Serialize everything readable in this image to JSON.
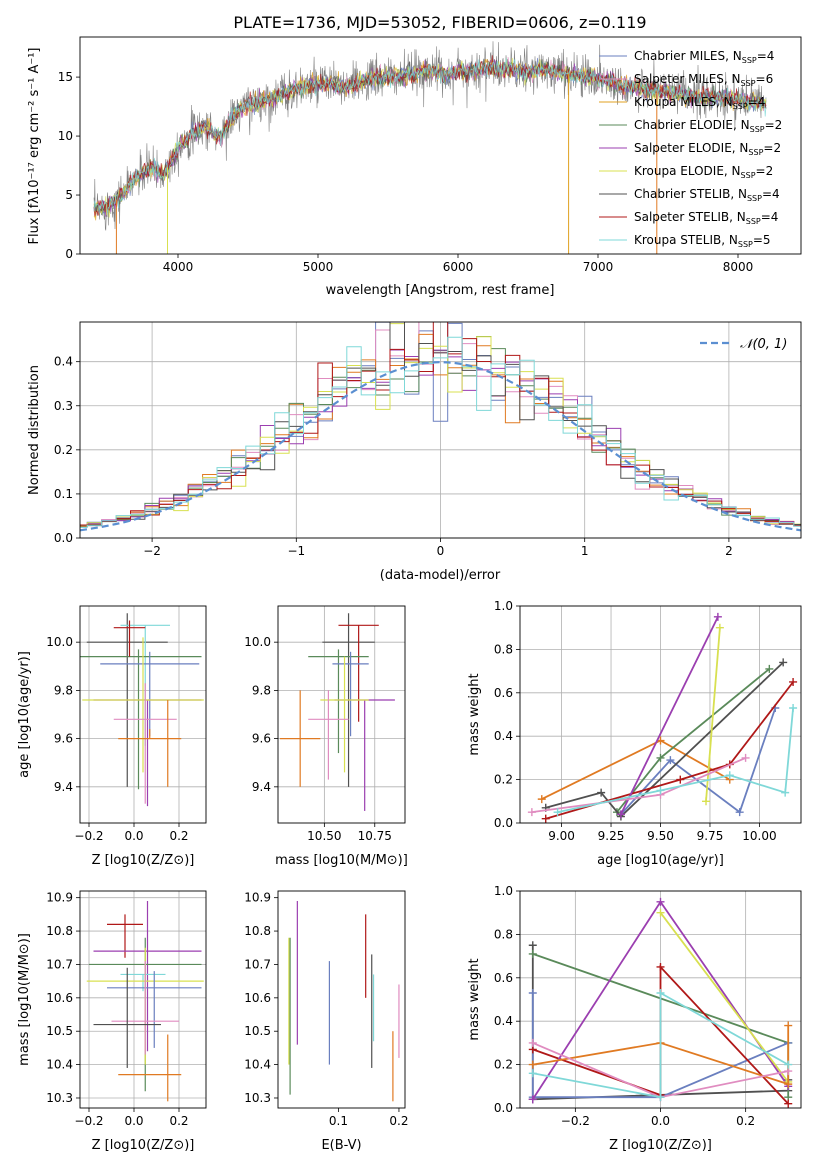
{
  "figure_title": "PLATE=1736, MJD=53052, FIBERID=0606, z=0.119",
  "colors": {
    "Chabrier MILES": "#6a7fbf",
    "Salpeter MILES": "#e0c080",
    "Kroupa MILES": "#e07a22",
    "Chabrier ELODIE": "#5a8a5a",
    "Salpeter ELODIE": "#9b3fb0",
    "Kroupa ELODIE": "#d8e050",
    "Chabrier STELIB": "#505050",
    "Salpeter STELIB": "#b01818",
    "Kroupa STELIB": "#7fd8d8",
    "normal_fit": "#5b8fd1",
    "pink": "#e08cc0"
  },
  "chart_data": [
    {
      "id": "spectrum",
      "type": "line",
      "xlabel": "wavelength [Angstrom, rest frame]",
      "ylabel": "Flux [f_λ10^-17 erg cm^-2 s^-1 A^-1]",
      "xlim": [
        3300,
        8450
      ],
      "ylim": [
        0,
        18.4
      ],
      "xticks": [
        4000,
        5000,
        6000,
        7000,
        8000
      ],
      "yticks": [
        0,
        5,
        10,
        15
      ],
      "grid": false,
      "legend_position": "top-right",
      "series": [
        {
          "name": "Chabrier MILES, N_SSP=4",
          "label_main": "Chabrier MILES, N",
          "label_sub": "SSP",
          "label_end": "=4",
          "color": "#6a7fbf"
        },
        {
          "name": "Salpeter MILES, N_SSP=6",
          "label_main": "Salpeter MILES, N",
          "label_sub": "SSP",
          "label_end": "=6",
          "color": "#e08cc0"
        },
        {
          "name": "Kroupa MILES, N_SSP=4",
          "label_main": "Kroupa MILES, N",
          "label_sub": "SSP",
          "label_end": "=4",
          "color": "#e0a020"
        },
        {
          "name": "Chabrier ELODIE, N_SSP=2",
          "label_main": "Chabrier ELODIE, N",
          "label_sub": "SSP",
          "label_end": "=2",
          "color": "#5a8a5a"
        },
        {
          "name": "Salpeter ELODIE, N_SSP=2",
          "label_main": "Salpeter ELODIE, N",
          "label_sub": "SSP",
          "label_end": "=2",
          "color": "#9b3fb0"
        },
        {
          "name": "Kroupa ELODIE, N_SSP=2",
          "label_main": "Kroupa ELODIE, N",
          "label_sub": "SSP",
          "label_end": "=2",
          "color": "#d8e050"
        },
        {
          "name": "Chabrier STELIB, N_SSP=4",
          "label_main": "Chabrier STELIB, N",
          "label_sub": "SSP",
          "label_end": "=4",
          "color": "#505050"
        },
        {
          "name": "Salpeter STELIB, N_SSP=4",
          "label_main": "Salpeter STELIB, N",
          "label_sub": "SSP",
          "label_end": "=4",
          "color": "#b01818"
        },
        {
          "name": "Kroupa STELIB, N_SSP=5",
          "label_main": "Kroupa STELIB, N",
          "label_sub": "SSP",
          "label_end": "=5",
          "color": "#7fd8d8"
        }
      ],
      "continuum": {
        "x": [
          3400,
          3500,
          3600,
          3700,
          3800,
          3900,
          4000,
          4100,
          4200,
          4300,
          4400,
          4500,
          4600,
          4700,
          4800,
          4900,
          5000,
          5100,
          5200,
          5300,
          5400,
          5500,
          5600,
          5700,
          5800,
          5900,
          6000,
          6100,
          6200,
          6300,
          6400,
          6500,
          6600,
          6700,
          6800,
          6900,
          7000,
          7100,
          7200,
          7300,
          7400,
          7500,
          7600,
          7700,
          7800,
          7900,
          8000,
          8100,
          8200
        ],
        "y": [
          3.8,
          4.0,
          5.0,
          6.5,
          7.3,
          6.8,
          9.0,
          10.2,
          10.8,
          9.8,
          11.8,
          12.6,
          13.0,
          13.3,
          13.8,
          14.2,
          14.3,
          14.5,
          14.0,
          14.6,
          14.9,
          15.0,
          15.1,
          15.3,
          15.6,
          15.2,
          15.5,
          15.5,
          15.8,
          15.7,
          15.6,
          15.4,
          15.6,
          15.5,
          15.3,
          15.1,
          14.9,
          14.6,
          14.2,
          14.0,
          13.9,
          13.7,
          13.5,
          13.4,
          13.2,
          13.3,
          13.0,
          12.9,
          12.7
        ]
      }
    },
    {
      "id": "residual_histogram",
      "type": "histogram",
      "xlabel": "(data-model)/error",
      "ylabel": "Normed distribution",
      "xlim": [
        -2.5,
        2.5
      ],
      "ylim": [
        0,
        0.49
      ],
      "xticks": [
        -2,
        -1,
        0,
        1,
        2
      ],
      "yticks": [
        0.0,
        0.1,
        0.2,
        0.3,
        0.4
      ],
      "grid": true,
      "legend": [
        {
          "label": "N(0,1)",
          "style": "dashed"
        }
      ],
      "legend_position": "top-right",
      "bin_width": 0.1,
      "bin_start": -2.55
    },
    {
      "id": "age_vs_Z",
      "type": "errorbar",
      "xlabel": "Z [log10(Z/Z⊙)]",
      "ylabel": "age [log10(age/yr)]",
      "xlim": [
        -0.24,
        0.32
      ],
      "ylim": [
        9.25,
        10.15
      ],
      "xticks": [
        -0.2,
        0.0,
        0.2
      ],
      "yticks": [
        9.4,
        9.6,
        9.8,
        10.0
      ],
      "grid": true,
      "points": [
        {
          "x": -0.03,
          "y": 10.0,
          "xerr": 0.18,
          "yerr_lo": 0.6,
          "yerr_hi": 0.12,
          "color": "#505050"
        },
        {
          "x": 0.05,
          "y": 10.07,
          "xerr": 0.11,
          "yerr_lo": 0.5,
          "yerr_hi": 0.0,
          "color": "#7fd8d8"
        },
        {
          "x": 0.02,
          "y": 9.94,
          "xerr": 0.28,
          "yerr_lo": 0.55,
          "yerr_hi": 0.03,
          "color": "#5a8a5a"
        },
        {
          "x": 0.07,
          "y": 9.91,
          "xerr": 0.22,
          "yerr_lo": 0.3,
          "yerr_hi": 0.05,
          "color": "#6a7fbf"
        },
        {
          "x": -0.02,
          "y": 10.06,
          "xerr": 0.07,
          "yerr_lo": 0.12,
          "yerr_hi": 0.03,
          "color": "#b01818"
        },
        {
          "x": 0.06,
          "y": 9.76,
          "xerr": 0.24,
          "yerr_lo": 0.44,
          "yerr_hi": 0.0,
          "color": "#9b3fb0"
        },
        {
          "x": 0.04,
          "y": 9.76,
          "xerr": 0.27,
          "yerr_lo": 0.3,
          "yerr_hi": 0.26,
          "color": "#d8e050"
        },
        {
          "x": 0.05,
          "y": 9.68,
          "xerr": 0.14,
          "yerr_lo": 0.35,
          "yerr_hi": 0.15,
          "color": "#e08cc0"
        },
        {
          "x": 0.07,
          "y": 9.6,
          "xerr": 0.14,
          "yerr_lo": 0.0,
          "yerr_hi": 0.04,
          "color": "#e07a22"
        },
        {
          "x": 0.15,
          "y": 9.6,
          "xerr": 0.0,
          "yerr_lo": 0.2,
          "yerr_hi": 0.16,
          "color": "#e07a22"
        }
      ]
    },
    {
      "id": "age_vs_mass",
      "type": "errorbar",
      "xlabel": "mass [log10(M/M⊙)]",
      "ylabel": "",
      "xlim": [
        10.27,
        10.9
      ],
      "ylim": [
        9.25,
        10.15
      ],
      "xticks": [
        10.5,
        10.75
      ],
      "xtick_labels": [
        "10.50",
        "10.75"
      ],
      "yticks": [
        9.4,
        9.6,
        9.8,
        10.0
      ],
      "grid": true,
      "points": [
        {
          "x": 10.62,
          "y": 10.0,
          "xerr": 0.13,
          "yerr_lo": 0.6,
          "yerr_hi": 0.12,
          "color": "#505050"
        },
        {
          "x": 10.67,
          "y": 10.07,
          "xerr": 0.1,
          "yerr_lo": 0.4,
          "yerr_hi": 0.0,
          "color": "#b01818"
        },
        {
          "x": 10.57,
          "y": 9.94,
          "xerr": 0.15,
          "yerr_lo": 0.4,
          "yerr_hi": 0.03,
          "color": "#5a8a5a"
        },
        {
          "x": 10.63,
          "y": 9.91,
          "xerr": 0.09,
          "yerr_lo": 0.3,
          "yerr_hi": 0.05,
          "color": "#6a7fbf"
        },
        {
          "x": 10.7,
          "y": 9.76,
          "xerr": 0.15,
          "yerr_lo": 0.46,
          "yerr_hi": 0.0,
          "color": "#9b3fb0"
        },
        {
          "x": 10.6,
          "y": 9.76,
          "xerr": 0.12,
          "yerr_lo": 0.3,
          "yerr_hi": 0.18,
          "color": "#d8e050"
        },
        {
          "x": 10.52,
          "y": 9.68,
          "xerr": 0.1,
          "yerr_lo": 0.25,
          "yerr_hi": 0.12,
          "color": "#e08cc0"
        },
        {
          "x": 10.38,
          "y": 9.6,
          "xerr": 0.1,
          "yerr_lo": 0.2,
          "yerr_hi": 0.2,
          "color": "#e07a22"
        }
      ]
    },
    {
      "id": "mass_weight_vs_age",
      "type": "line",
      "xlabel": "age [log10(age/yr)]",
      "ylabel": "mass weight",
      "xlim": [
        8.79,
        10.21
      ],
      "ylim": [
        0,
        1.0
      ],
      "xticks": [
        9.0,
        9.25,
        9.5,
        9.75,
        10.0
      ],
      "xtick_labels": [
        "9.00",
        "9.25",
        "9.50",
        "9.75",
        "10.00"
      ],
      "yticks": [
        0.0,
        0.2,
        0.4,
        0.6,
        0.8,
        1.0
      ],
      "grid": true,
      "series": [
        {
          "color": "#e07a22",
          "x": [
            8.9,
            9.5,
            9.85
          ],
          "y": [
            0.11,
            0.38,
            0.2
          ]
        },
        {
          "color": "#6a7fbf",
          "x": [
            9.3,
            9.55,
            9.9,
            10.08
          ],
          "y": [
            0.04,
            0.29,
            0.05,
            0.53
          ]
        },
        {
          "color": "#5a8a5a",
          "x": [
            9.28,
            9.5,
            10.05
          ],
          "y": [
            0.05,
            0.3,
            0.71
          ]
        },
        {
          "color": "#505050",
          "x": [
            8.92,
            9.2,
            9.3,
            10.12
          ],
          "y": [
            0.07,
            0.14,
            0.03,
            0.74
          ]
        },
        {
          "color": "#b01818",
          "x": [
            8.92,
            9.6,
            9.85,
            10.17
          ],
          "y": [
            0.02,
            0.2,
            0.27,
            0.65
          ]
        },
        {
          "color": "#9b3fb0",
          "x": [
            9.3,
            9.79
          ],
          "y": [
            0.04,
            0.95
          ]
        },
        {
          "color": "#d8e050",
          "x": [
            9.73,
            9.8
          ],
          "y": [
            0.1,
            0.9
          ]
        },
        {
          "color": "#e08cc0",
          "x": [
            8.85,
            9.5,
            9.93
          ],
          "y": [
            0.05,
            0.13,
            0.3
          ]
        },
        {
          "color": "#7fd8d8",
          "x": [
            8.98,
            9.5,
            9.85,
            10.13,
            10.17
          ],
          "y": [
            0.05,
            0.15,
            0.22,
            0.14,
            0.53
          ]
        }
      ]
    },
    {
      "id": "mass_vs_Z",
      "type": "errorbar",
      "xlabel": "Z [log10(Z/Z⊙)]",
      "ylabel": "mass [log10(M/M⊙)]",
      "xlim": [
        -0.24,
        0.32
      ],
      "ylim": [
        10.27,
        10.92
      ],
      "xticks": [
        -0.2,
        0.0,
        0.2
      ],
      "yticks": [
        10.3,
        10.4,
        10.5,
        10.6,
        10.7,
        10.8,
        10.9
      ],
      "grid": true,
      "points": [
        {
          "x": -0.04,
          "y": 10.82,
          "xerr": 0.08,
          "yerr_lo": 0.1,
          "yerr_hi": 0.03,
          "color": "#b01818"
        },
        {
          "x": 0.06,
          "y": 10.74,
          "xerr": 0.24,
          "yerr_lo": 0.3,
          "yerr_hi": 0.15,
          "color": "#9b3fb0"
        },
        {
          "x": 0.05,
          "y": 10.7,
          "xerr": 0.25,
          "yerr_lo": 0.38,
          "yerr_hi": 0.08,
          "color": "#5a8a5a"
        },
        {
          "x": 0.04,
          "y": 10.67,
          "xerr": 0.1,
          "yerr_lo": 0.05,
          "yerr_hi": 0.0,
          "color": "#7fd8d8"
        },
        {
          "x": 0.05,
          "y": 10.65,
          "xerr": 0.26,
          "yerr_lo": 0.25,
          "yerr_hi": 0.1,
          "color": "#d8e050"
        },
        {
          "x": 0.09,
          "y": 10.63,
          "xerr": 0.21,
          "yerr_lo": 0.18,
          "yerr_hi": 0.05,
          "color": "#6a7fbf"
        },
        {
          "x": 0.05,
          "y": 10.53,
          "xerr": 0.15,
          "yerr_lo": 0.1,
          "yerr_hi": 0.18,
          "color": "#e08cc0"
        },
        {
          "x": -0.03,
          "y": 10.52,
          "xerr": 0.15,
          "yerr_lo": 0.13,
          "yerr_hi": 0.17,
          "color": "#505050"
        },
        {
          "x": 0.07,
          "y": 10.37,
          "xerr": 0.14,
          "yerr_lo": 0.0,
          "yerr_hi": 0.0,
          "color": "#e07a22"
        },
        {
          "x": 0.15,
          "y": 10.37,
          "xerr": 0.0,
          "yerr_lo": 0.08,
          "yerr_hi": 0.12,
          "color": "#e07a22"
        }
      ]
    },
    {
      "id": "mass_vs_EBV",
      "type": "errorbar",
      "xlabel": "E(B-V)",
      "ylabel": "",
      "xlim": [
        0.0,
        0.21
      ],
      "ylim": [
        10.27,
        10.92
      ],
      "xticks": [
        0.1,
        0.2
      ],
      "yticks": [
        10.3,
        10.4,
        10.5,
        10.6,
        10.7,
        10.8,
        10.9
      ],
      "grid": false,
      "points": [
        {
          "x": 0.02,
          "y": 10.55,
          "yerr_lo": 0.24,
          "yerr_hi": 0.23,
          "color": "#5a8a5a"
        },
        {
          "x": 0.018,
          "y": 10.6,
          "yerr_lo": 0.2,
          "yerr_hi": 0.18,
          "color": "#d8e050"
        },
        {
          "x": 0.032,
          "y": 10.67,
          "yerr_lo": 0.21,
          "yerr_hi": 0.22,
          "color": "#9b3fb0"
        },
        {
          "x": 0.085,
          "y": 10.55,
          "yerr_lo": 0.15,
          "yerr_hi": 0.16,
          "color": "#6a7fbf"
        },
        {
          "x": 0.145,
          "y": 10.72,
          "yerr_lo": 0.12,
          "yerr_hi": 0.13,
          "color": "#b01818"
        },
        {
          "x": 0.155,
          "y": 10.56,
          "yerr_lo": 0.17,
          "yerr_hi": 0.17,
          "color": "#505050"
        },
        {
          "x": 0.158,
          "y": 10.57,
          "yerr_lo": 0.1,
          "yerr_hi": 0.1,
          "color": "#7fd8d8"
        },
        {
          "x": 0.19,
          "y": 10.39,
          "yerr_lo": 0.1,
          "yerr_hi": 0.11,
          "color": "#e07a22"
        },
        {
          "x": 0.2,
          "y": 10.53,
          "yerr_lo": 0.11,
          "yerr_hi": 0.11,
          "color": "#e08cc0"
        }
      ]
    },
    {
      "id": "mass_weight_vs_Z",
      "type": "line",
      "xlabel": "Z [log10(Z/Z⊙)]",
      "ylabel": "mass weight",
      "xlim": [
        -0.33,
        0.33
      ],
      "ylim": [
        0,
        1.0
      ],
      "xticks": [
        -0.2,
        0.0,
        0.2
      ],
      "yticks": [
        0.0,
        0.2,
        0.4,
        0.6,
        0.8,
        1.0
      ],
      "grid": true,
      "series": [
        {
          "color": "#505050",
          "x": [
            -0.3,
            -0.3,
            0.3,
            0.3
          ],
          "y": [
            0.75,
            0.04,
            0.08,
            0.13
          ]
        },
        {
          "color": "#5a8a5a",
          "x": [
            -0.3,
            0.3,
            0.3
          ],
          "y": [
            0.71,
            0.3,
            0.05
          ]
        },
        {
          "color": "#6a7fbf",
          "x": [
            -0.3,
            -0.3,
            0.0,
            0.3
          ],
          "y": [
            0.53,
            0.05,
            0.05,
            0.3
          ]
        },
        {
          "color": "#b01818",
          "x": [
            -0.3,
            0.0,
            0.0,
            0.3
          ],
          "y": [
            0.27,
            0.06,
            0.65,
            0.02
          ]
        },
        {
          "color": "#9b3fb0",
          "x": [
            -0.3,
            0.0,
            0.3
          ],
          "y": [
            0.04,
            0.95,
            0.1
          ]
        },
        {
          "color": "#d8e050",
          "x": [
            0.0,
            0.3
          ],
          "y": [
            0.9,
            0.12
          ]
        },
        {
          "color": "#e07a22",
          "x": [
            -0.3,
            0.0,
            0.3,
            0.3
          ],
          "y": [
            0.2,
            0.3,
            0.11,
            0.38
          ]
        },
        {
          "color": "#e08cc0",
          "x": [
            -0.3,
            0.0,
            0.3
          ],
          "y": [
            0.3,
            0.05,
            0.17
          ]
        },
        {
          "color": "#7fd8d8",
          "x": [
            -0.3,
            0.0,
            0.0,
            0.3
          ],
          "y": [
            0.16,
            0.05,
            0.53,
            0.2
          ]
        }
      ]
    }
  ]
}
